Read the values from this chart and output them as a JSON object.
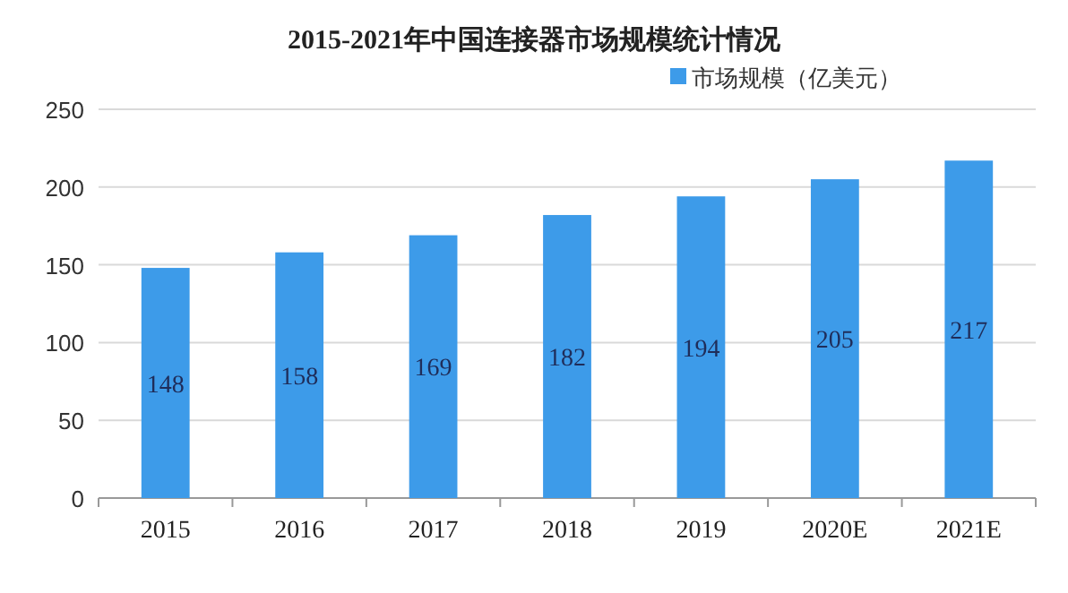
{
  "chart_data": {
    "type": "bar",
    "title": "2015-2021年中国连接器市场规模统计情况",
    "categories": [
      "2015",
      "2016",
      "2017",
      "2018",
      "2019",
      "2020E",
      "2021E"
    ],
    "series": [
      {
        "name": "市场规模（亿美元）",
        "color": "#3d9be9",
        "values": [
          148,
          158,
          169,
          182,
          194,
          205,
          217
        ]
      }
    ],
    "ylim": [
      0,
      250
    ],
    "yticks": [
      0,
      50,
      100,
      150,
      200,
      250
    ],
    "grid": "y",
    "legend": "top right",
    "data_labels": true
  }
}
